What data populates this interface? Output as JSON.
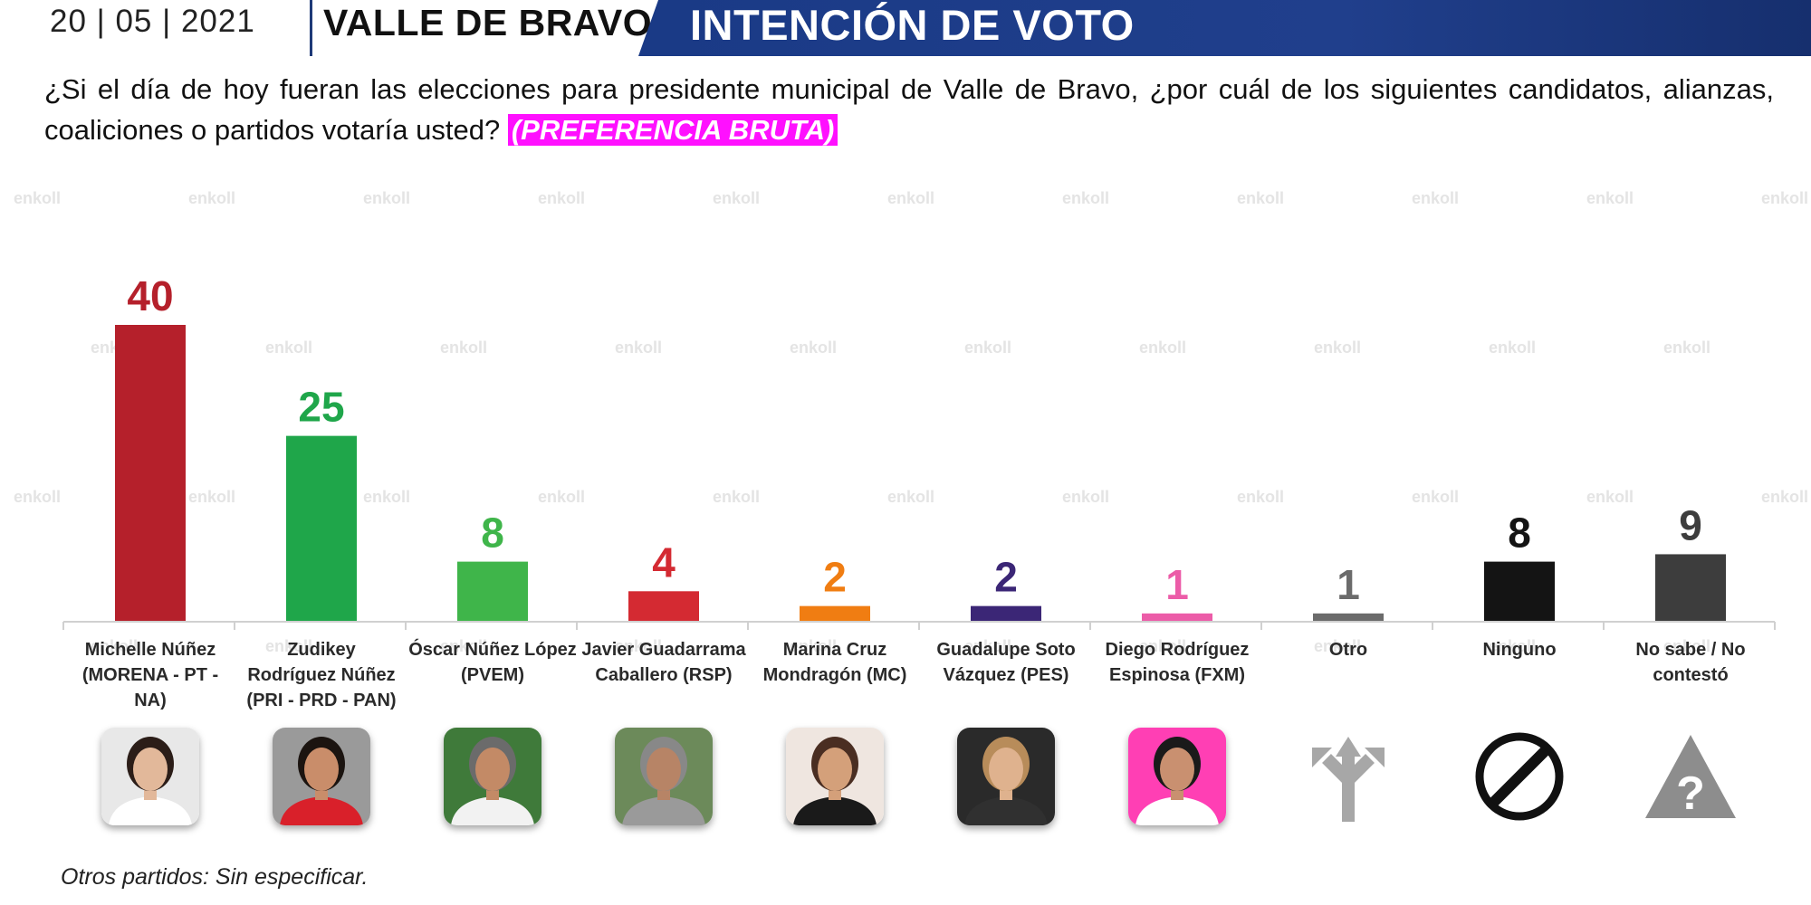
{
  "header": {
    "date": "20 | 05 | 2021",
    "place": "VALLE DE BRAVO",
    "title": "INTENCIÓN DE VOTO",
    "banner_color": "#1e3c84"
  },
  "question": {
    "text": "¿Si el día de hoy fueran las elecciones para presidente municipal de Valle de Bravo, ¿por cuál de los siguientes candidatos, alianzas, coaliciones o partidos votaría usted?",
    "tag": "(PREFERENCIA BRUTA)",
    "tag_color": "#ff10ff"
  },
  "watermark_text": "enkoll",
  "footnote": "Otros partidos: Sin especificar.",
  "chart_data": {
    "type": "bar",
    "ylim": [
      0,
      40
    ],
    "categories": [
      [
        "Michelle Núñez",
        "(MORENA - PT -",
        "NA)"
      ],
      [
        "Zudikey",
        "Rodríguez Núñez",
        "(PRI - PRD - PAN)"
      ],
      [
        "Óscar Núñez López",
        "(PVEM)"
      ],
      [
        "Javier Guadarrama",
        "Caballero (RSP)"
      ],
      [
        "Marina Cruz",
        "Mondragón (MC)"
      ],
      [
        "Guadalupe Soto",
        "Vázquez (PES)"
      ],
      [
        "Diego Rodríguez",
        "Espinosa (FXM)"
      ],
      [
        "Otro"
      ],
      [
        "Ninguno"
      ],
      [
        "No sabe / No",
        "contestó"
      ]
    ],
    "values": [
      40,
      25,
      8,
      4,
      2,
      2,
      1,
      1,
      8,
      9
    ],
    "colors": [
      "#b5202b",
      "#1fa64a",
      "#3fb54a",
      "#d42a32",
      "#f07d12",
      "#3b2676",
      "#ec5ca8",
      "#6b6b6b",
      "#141414",
      "#3d3d3d"
    ],
    "label_colors": [
      "#b5202b",
      "#1fa64a",
      "#3fb54a",
      "#d42a32",
      "#f07d12",
      "#3b2676",
      "#ec5ca8",
      "#6b6b6b",
      "#141414",
      "#3d3d3d"
    ]
  },
  "icons": [
    {
      "name": "candidate-photo-michelle",
      "kind": "photo",
      "bg": "#e8e8e8",
      "skin": "#e2b89a",
      "hair": "#2b1d18",
      "shirt": "#ffffff"
    },
    {
      "name": "candidate-photo-zudikey",
      "kind": "photo",
      "bg": "#9a9a9a",
      "skin": "#c98d6a",
      "hair": "#1b1410",
      "shirt": "#d9202a"
    },
    {
      "name": "candidate-photo-oscar",
      "kind": "photo",
      "bg": "#3f7a3a",
      "skin": "#c38a66",
      "hair": "#6b6b6b",
      "shirt": "#f2f2f2"
    },
    {
      "name": "candidate-photo-javier",
      "kind": "photo",
      "bg": "#6c8a5a",
      "skin": "#b78466",
      "hair": "#888888",
      "shirt": "#9a9a9a"
    },
    {
      "name": "candidate-photo-marina",
      "kind": "photo",
      "bg": "#efe6e0",
      "skin": "#d4a07a",
      "hair": "#4a2e22",
      "shirt": "#1a1a1a"
    },
    {
      "name": "candidate-photo-guadalupe",
      "kind": "photo",
      "bg": "#2a2a2a",
      "skin": "#dfb28e",
      "hair": "#b88c5a",
      "shirt": "#303030"
    },
    {
      "name": "candidate-photo-diego",
      "kind": "photo",
      "bg": "#ff3fb4",
      "skin": "#c99070",
      "hair": "#1a1a1a",
      "shirt": "#ffffff"
    },
    {
      "name": "fork-arrows-icon",
      "kind": "fork"
    },
    {
      "name": "no-symbol-icon",
      "kind": "no"
    },
    {
      "name": "question-triangle-icon",
      "kind": "question"
    }
  ]
}
